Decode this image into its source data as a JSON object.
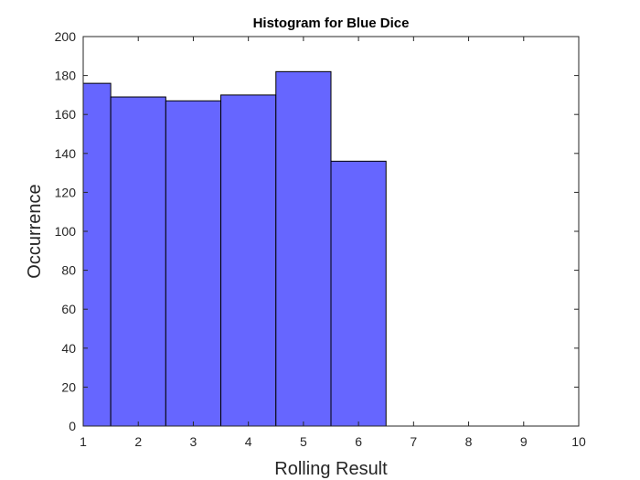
{
  "chart_data": {
    "type": "bar",
    "title": "Histogram for Blue Dice",
    "xlabel": "Rolling Result",
    "ylabel": "Occurrence",
    "xlim": [
      1,
      10
    ],
    "ylim": [
      0,
      200
    ],
    "xticks": [
      1,
      2,
      3,
      4,
      5,
      6,
      7,
      8,
      9,
      10
    ],
    "yticks": [
      0,
      20,
      40,
      60,
      80,
      100,
      120,
      140,
      160,
      180,
      200
    ],
    "bins": [
      {
        "x0": 1.0,
        "x1": 1.5,
        "value": 176
      },
      {
        "x0": 1.5,
        "x1": 2.5,
        "value": 169
      },
      {
        "x0": 2.5,
        "x1": 3.5,
        "value": 167
      },
      {
        "x0": 3.5,
        "x1": 4.5,
        "value": 170
      },
      {
        "x0": 4.5,
        "x1": 5.5,
        "value": 182
      },
      {
        "x0": 5.5,
        "x1": 6.5,
        "value": 136
      }
    ],
    "bar_color": "#6666ff",
    "edge_color": "#000000",
    "grid": false
  }
}
